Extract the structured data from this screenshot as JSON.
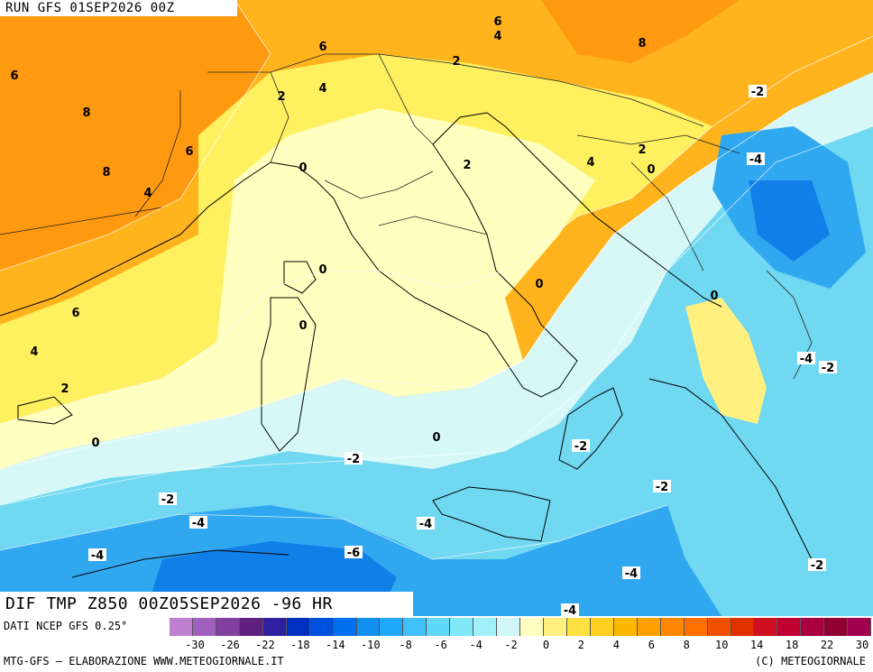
{
  "header": {
    "run": "RUN GFS 01SEP2026 00Z"
  },
  "field": {
    "title": "DIF TMP Z850 00Z05SEP2026 -96 HR"
  },
  "legend": {
    "source": "DATI NCEP GFS 0.25°",
    "ticks": [
      "-30",
      "-26",
      "-22",
      "-18",
      "-14",
      "-10",
      "-8",
      "-6",
      "-4",
      "-2",
      "0",
      "2",
      "4",
      "6",
      "8",
      "10",
      "14",
      "18",
      "22",
      "30"
    ],
    "colors": [
      "#c080d0",
      "#a060c0",
      "#8040a0",
      "#602080",
      "#3020a0",
      "#0030c0",
      "#0050e0",
      "#0070f0",
      "#1090f0",
      "#20a8f8",
      "#40c0f8",
      "#60d8f8",
      "#80e8f8",
      "#a0f0f8",
      "#d0f8f8",
      "#ffffc0",
      "#fff080",
      "#ffe040",
      "#ffd020",
      "#ffb800",
      "#ffa000",
      "#ff8800",
      "#ff7000",
      "#f05000",
      "#e03000",
      "#d01020",
      "#c00030",
      "#a80040",
      "#900030",
      "#a00050"
    ]
  },
  "footer": {
    "left": "MTG-GFS — ELABORAZIONE WWW.METEOGIORNALE.IT",
    "right": "(C) METEOGIORNALE"
  },
  "contour_labels": [
    {
      "text": "6"
    },
    {
      "text": "8"
    },
    {
      "text": "8"
    },
    {
      "text": "4"
    },
    {
      "text": "6"
    },
    {
      "text": "6"
    },
    {
      "text": "4"
    },
    {
      "text": "2"
    },
    {
      "text": "0"
    },
    {
      "text": "2"
    },
    {
      "text": "2"
    },
    {
      "text": "6"
    },
    {
      "text": "4"
    },
    {
      "text": "8"
    },
    {
      "text": "-2"
    },
    {
      "text": "4"
    },
    {
      "text": "2"
    },
    {
      "text": "0"
    },
    {
      "text": "-4"
    },
    {
      "text": "0"
    },
    {
      "text": "0"
    },
    {
      "text": "0"
    },
    {
      "text": "0"
    },
    {
      "text": "6"
    },
    {
      "text": "4"
    },
    {
      "text": "2"
    },
    {
      "text": "0"
    },
    {
      "text": "-2"
    },
    {
      "text": "-2"
    },
    {
      "text": "-4"
    },
    {
      "text": "-2"
    },
    {
      "text": "-4"
    },
    {
      "text": "-6"
    },
    {
      "text": "-4"
    },
    {
      "text": "-4"
    },
    {
      "text": "-2"
    },
    {
      "text": "-2"
    },
    {
      "text": "-4"
    },
    {
      "text": "-2"
    },
    {
      "text": "-4"
    },
    {
      "text": "0"
    }
  ]
}
